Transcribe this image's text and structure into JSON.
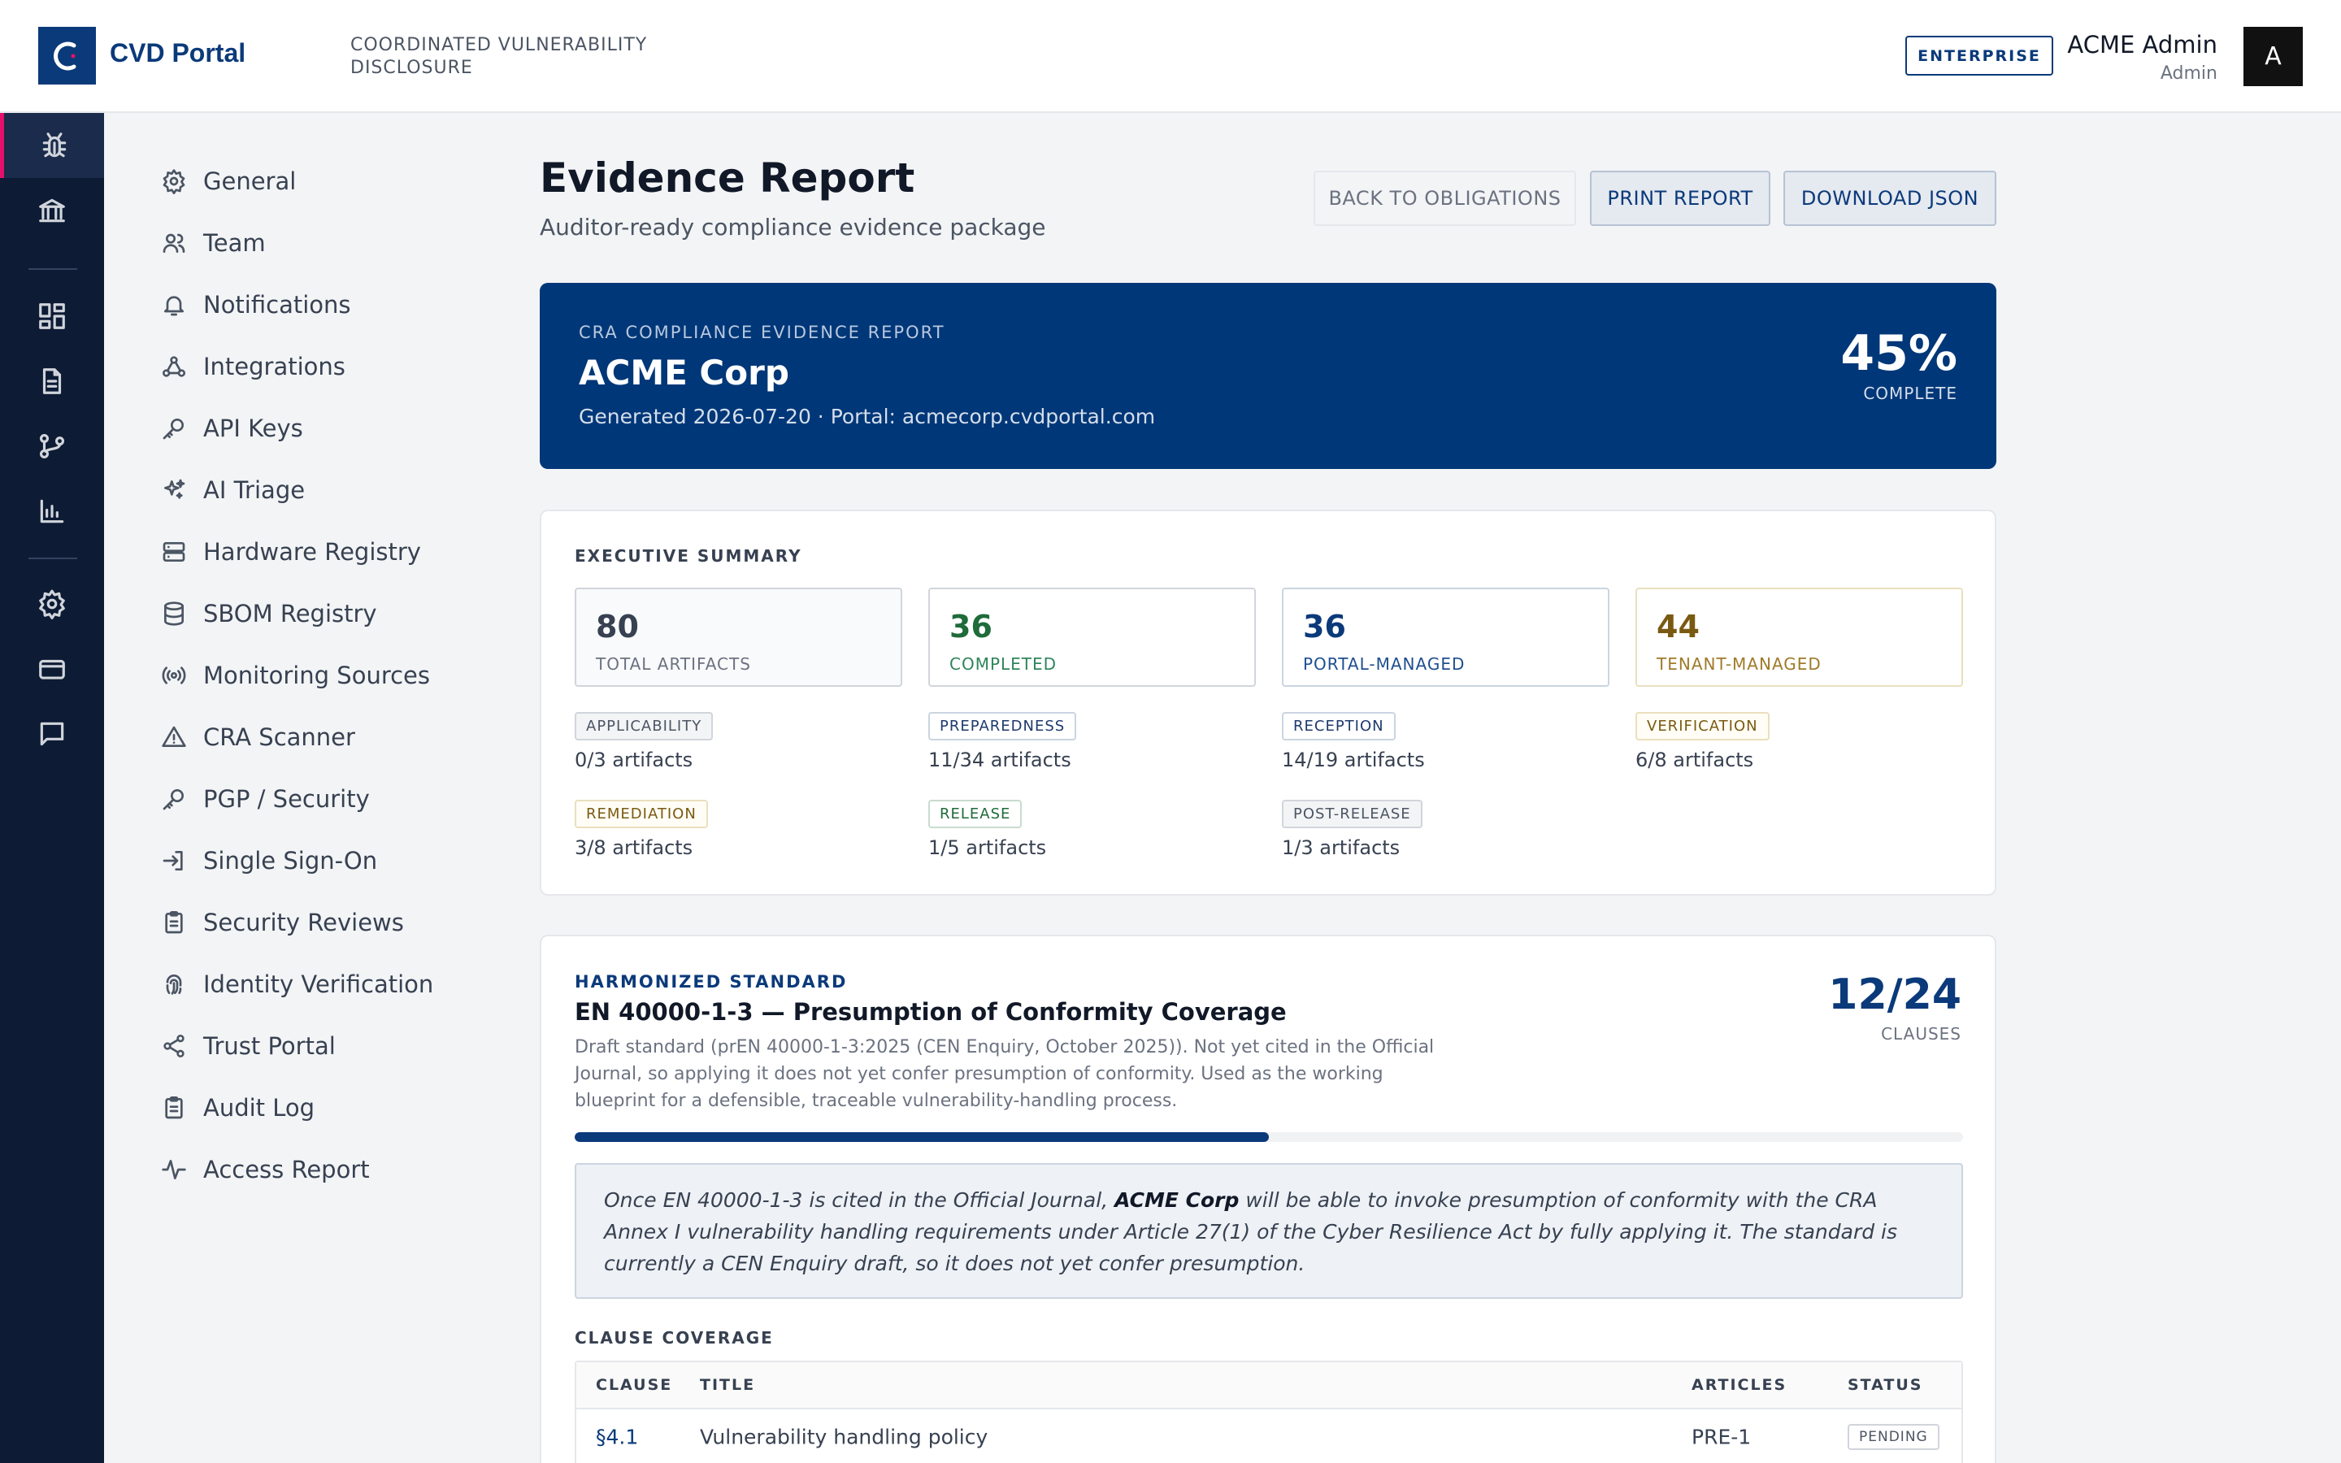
{
  "header": {
    "brand": "CVD Portal",
    "tagline": "COORDINATED VULNERABILITY DISCLOSURE",
    "plan_badge": "ENTERPRISE",
    "user_name": "ACME Admin",
    "user_role": "Admin",
    "avatar_initial": "A"
  },
  "rail": {
    "items": [
      "bug-icon",
      "bank-icon",
      "dashboard-icon",
      "document-icon",
      "branch-icon",
      "chart-icon",
      "gear-icon",
      "card-icon",
      "chat-icon"
    ],
    "active": "bug-icon",
    "accent_color": "#e6106a"
  },
  "settings_nav": {
    "items": [
      {
        "label": "General",
        "icon": "gear-icon"
      },
      {
        "label": "Team",
        "icon": "users-icon"
      },
      {
        "label": "Notifications",
        "icon": "bell-icon"
      },
      {
        "label": "Integrations",
        "icon": "webhook-icon"
      },
      {
        "label": "API Keys",
        "icon": "key-icon"
      },
      {
        "label": "AI Triage",
        "icon": "sparkles-icon"
      },
      {
        "label": "Hardware Registry",
        "icon": "server-icon"
      },
      {
        "label": "SBOM Registry",
        "icon": "database-icon"
      },
      {
        "label": "Monitoring Sources",
        "icon": "radio-icon"
      },
      {
        "label": "CRA Scanner",
        "icon": "warning-icon"
      },
      {
        "label": "PGP / Security",
        "icon": "key-icon"
      },
      {
        "label": "Single Sign-On",
        "icon": "login-icon"
      },
      {
        "label": "Security Reviews",
        "icon": "clipboard-icon"
      },
      {
        "label": "Identity Verification",
        "icon": "fingerprint-icon"
      },
      {
        "label": "Trust Portal",
        "icon": "share-icon"
      },
      {
        "label": "Audit Log",
        "icon": "clipboard-icon"
      },
      {
        "label": "Access Report",
        "icon": "activity-icon"
      }
    ]
  },
  "page": {
    "title": "Evidence Report",
    "subtitle": "Auditor-ready compliance evidence package",
    "buttons": {
      "back": "BACK TO OBLIGATIONS",
      "print": "PRINT REPORT",
      "download": "DOWNLOAD JSON"
    }
  },
  "hero": {
    "kicker": "CRA COMPLIANCE EVIDENCE REPORT",
    "org": "ACME Corp",
    "meta": "Generated 2026-07-20 · Portal: acmecorp.cvdportal.com",
    "percent": "45%",
    "percent_label": "COMPLETE",
    "bg_color": "#003778"
  },
  "summary": {
    "title": "EXECUTIVE SUMMARY",
    "stats": [
      {
        "value": "80",
        "label": "TOTAL ARTIFACTS",
        "color": "#374151",
        "label_color": "#6b7280",
        "border": "#d1d5db",
        "bg": "#f9fafb"
      },
      {
        "value": "36",
        "label": "COMPLETED",
        "color": "#1f6b3a",
        "label_color": "#2f855a",
        "border": "#d1d5db",
        "bg": "#ffffff"
      },
      {
        "value": "36",
        "label": "PORTAL-MANAGED",
        "color": "#0b3a7a",
        "label_color": "#1e4f91",
        "border": "#cbd5e1",
        "bg": "#ffffff"
      },
      {
        "value": "44",
        "label": "TENANT-MANAGED",
        "color": "#7a5a12",
        "label_color": "#a07a2a",
        "border": "#eadfbe",
        "bg": "#ffffff"
      }
    ],
    "phases": [
      {
        "tag": "APPLICABILITY",
        "count": "0/3 artifacts",
        "color": "#4b5563",
        "bg": "#f3f4f6",
        "border": "#d1d5db"
      },
      {
        "tag": "PREPAREDNESS",
        "count": "11/34 artifacts",
        "color": "#1e3a6e",
        "bg": "#ffffff",
        "border": "#cbd5e1"
      },
      {
        "tag": "RECEPTION",
        "count": "14/19 artifacts",
        "color": "#1e3a6e",
        "bg": "#ffffff",
        "border": "#cbd5e1"
      },
      {
        "tag": "VERIFICATION",
        "count": "6/8 artifacts",
        "color": "#7a5a12",
        "bg": "#fffdf5",
        "border": "#eadfbe"
      },
      {
        "tag": "REMEDIATION",
        "count": "3/8 artifacts",
        "color": "#7a5a12",
        "bg": "#fffdf5",
        "border": "#eadfbe"
      },
      {
        "tag": "RELEASE",
        "count": "1/5 artifacts",
        "color": "#1f6b3a",
        "bg": "#ffffff",
        "border": "#c9dccf"
      },
      {
        "tag": "POST-RELEASE",
        "count": "1/3 artifacts",
        "color": "#4b5563",
        "bg": "#f3f4f6",
        "border": "#d1d5db"
      }
    ]
  },
  "standard": {
    "kicker": "HARMONIZED STANDARD",
    "title": "EN 40000-1-3 — Presumption of Conformity Coverage",
    "description": "Draft standard (prEN 40000-1-3:2025 (CEN Enquiry, October 2025)). Not yet cited in the Official Journal, so applying it does not yet confer presumption of conformity. Used as the working blueprint for a defensible, traceable vulnerability-handling process.",
    "fraction": "12/24",
    "fraction_label": "CLAUSES",
    "progress": 0.5,
    "note_prefix": "Once EN 40000-1-3 is cited in the Official Journal, ",
    "note_org": "ACME Corp",
    "note_suffix": " will be able to invoke presumption of conformity with the CRA Annex I vulnerability handling requirements under Article 27(1) of the Cyber Resilience Act by fully applying it. The standard is currently a CEN Enquiry draft, so it does not yet confer presumption.",
    "coverage_title": "CLAUSE COVERAGE",
    "columns": {
      "clause": "CLAUSE",
      "title": "TITLE",
      "articles": "ARTICLES",
      "status": "STATUS"
    },
    "rows": [
      {
        "clause": "§4.1",
        "title": "Vulnerability handling policy",
        "articles": "PRE-1",
        "status": "PENDING"
      }
    ]
  }
}
